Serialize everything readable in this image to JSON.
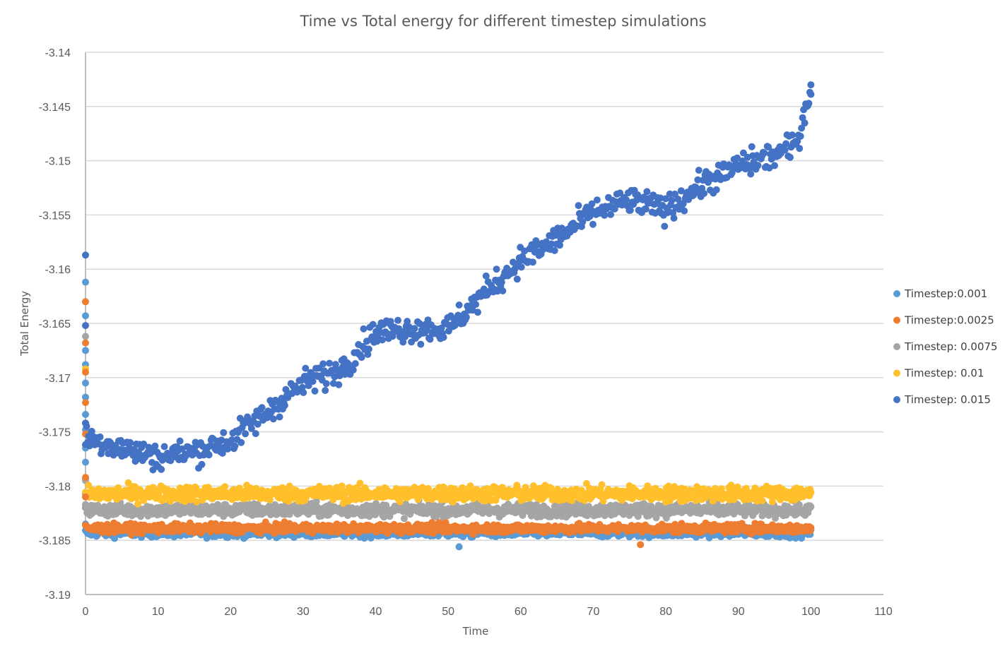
{
  "chart_data": {
    "type": "scatter",
    "title": "Time vs Total energy for different timestep simulations",
    "xlabel": "Time",
    "ylabel": "Total Energy",
    "xlim": [
      0,
      110
    ],
    "ylim": [
      -3.19,
      -3.14
    ],
    "xticks": [
      0,
      10,
      20,
      30,
      40,
      50,
      60,
      70,
      80,
      90,
      100,
      110
    ],
    "yticks": [
      -3.14,
      -3.145,
      -3.15,
      -3.155,
      -3.16,
      -3.165,
      -3.17,
      -3.175,
      -3.18,
      -3.185,
      -3.19
    ],
    "xtick_labels": [
      "0",
      "10",
      "20",
      "30",
      "40",
      "50",
      "60",
      "70",
      "80",
      "90",
      "100",
      "110"
    ],
    "ytick_labels": [
      "-3.14",
      "-3.145",
      "-3.15",
      "-3.155",
      "-3.16",
      "-3.165",
      "-3.17",
      "-3.175",
      "-3.18",
      "-3.185",
      "-3.19"
    ],
    "grid": "horizontal",
    "legend_position": "right",
    "series": [
      {
        "name": "Timestep:0.001",
        "color": "#5b9bd5",
        "initial": [
          [
            0,
            -3.1612
          ],
          [
            0,
            -3.1643
          ],
          [
            0,
            -3.1675
          ],
          [
            0,
            -3.1688
          ],
          [
            0,
            -3.1705
          ],
          [
            0,
            -3.1718
          ],
          [
            0,
            -3.1734
          ],
          [
            0,
            -3.1748
          ],
          [
            0,
            -3.1765
          ],
          [
            0,
            -3.1778
          ],
          [
            0,
            -3.1793
          ],
          [
            0,
            -3.1807
          ],
          [
            0,
            -3.182
          ],
          [
            0,
            -3.1835
          ]
        ],
        "baseline": -3.1843,
        "spread": 0.0004,
        "x_range": [
          0,
          100
        ],
        "points_count": 1000,
        "min_outlier": [
          51.5,
          -3.1856
        ]
      },
      {
        "name": "Timestep:0.0025",
        "color": "#ed7d31",
        "initial": [
          [
            0,
            -3.163
          ],
          [
            0,
            -3.1668
          ],
          [
            0,
            -3.1695
          ],
          [
            0,
            -3.1723
          ],
          [
            0,
            -3.1752
          ],
          [
            0,
            -3.1792
          ],
          [
            0,
            -3.181
          ]
        ],
        "baseline": -3.1839,
        "spread": 0.0004,
        "x_range": [
          0,
          100
        ],
        "points_count": 1000,
        "min_outlier": [
          76.5,
          -3.1854
        ]
      },
      {
        "name": "Timestep: 0.0075",
        "color": "#a5a5a5",
        "initial": [
          [
            0,
            -3.1662
          ],
          [
            0,
            -3.1742
          ],
          [
            0,
            -3.1795
          ]
        ],
        "baseline": -3.1822,
        "spread": 0.0006,
        "x_range": [
          0,
          100
        ],
        "points_count": 1000
      },
      {
        "name": "Timestep: 0.01",
        "color": "#ffc02b",
        "initial": [
          [
            0,
            -3.1692
          ],
          [
            0,
            -3.1762
          ]
        ],
        "baseline": -3.1807,
        "spread": 0.0007,
        "x_range": [
          0,
          100
        ],
        "points_count": 1000
      },
      {
        "name": "Timestep: 0.015",
        "color": "#4472c4",
        "initial": [
          [
            0,
            -3.1587
          ],
          [
            0,
            -3.1652
          ],
          [
            0,
            -3.1742
          ]
        ],
        "trend": [
          [
            0,
            -3.1755
          ],
          [
            5,
            -3.1765
          ],
          [
            10,
            -3.1773
          ],
          [
            15,
            -3.1768
          ],
          [
            20,
            -3.1758
          ],
          [
            25,
            -3.1732
          ],
          [
            30,
            -3.1705
          ],
          [
            35,
            -3.1693
          ],
          [
            40,
            -3.1658
          ],
          [
            45,
            -3.1655
          ],
          [
            50,
            -3.1655
          ],
          [
            55,
            -3.1622
          ],
          [
            60,
            -3.1592
          ],
          [
            65,
            -3.1572
          ],
          [
            70,
            -3.1548
          ],
          [
            75,
            -3.1537
          ],
          [
            80,
            -3.1545
          ],
          [
            85,
            -3.1522
          ],
          [
            90,
            -3.1505
          ],
          [
            95,
            -3.1495
          ],
          [
            98,
            -3.1485
          ],
          [
            100,
            -3.1432
          ]
        ],
        "spread": 0.0012,
        "x_range": [
          0,
          100
        ],
        "points_count": 700,
        "max_point": [
          100,
          -3.143
        ]
      }
    ]
  }
}
